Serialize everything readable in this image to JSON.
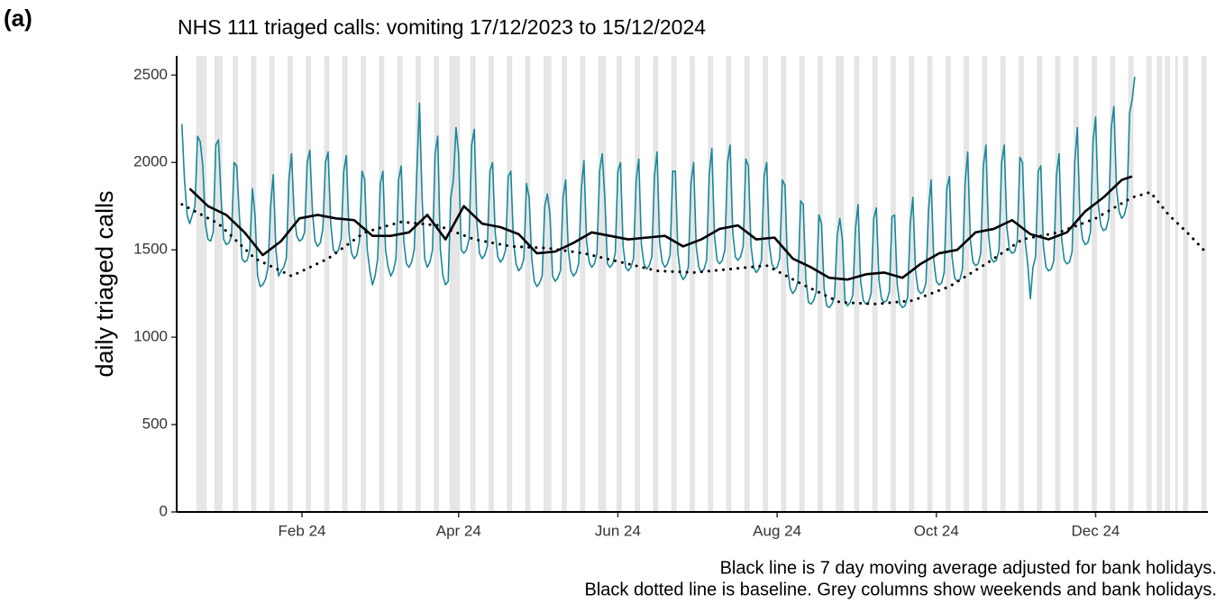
{
  "chart_data": {
    "type": "line",
    "panel": "(a)",
    "title": "NHS 111 triaged calls: vomiting 17/12/2023 to 15/12/2024",
    "y_label": "daily triaged calls",
    "notes": [
      "Black line is 7 day moving average adjusted for bank holidays.",
      "Black dotted line is baseline. Grey columns show weekends and bank holidays."
    ],
    "xlim": [
      -2,
      393
    ],
    "xticks": [
      {
        "value": 46,
        "label": "Feb 24"
      },
      {
        "value": 106,
        "label": "Apr 24"
      },
      {
        "value": 167,
        "label": "Jun 24"
      },
      {
        "value": 228,
        "label": "Aug 24"
      },
      {
        "value": 289,
        "label": "Oct 24"
      },
      {
        "value": 350,
        "label": "Dec 24"
      }
    ],
    "ylim": [
      0,
      2610
    ],
    "yticks": [
      0,
      500,
      1000,
      1500,
      2000,
      2500
    ],
    "grid": false,
    "shade_color": "#e5e5e5",
    "shaded_days": [
      6,
      7,
      8,
      9,
      13,
      14,
      15,
      20,
      21,
      27,
      28,
      34,
      35,
      41,
      42,
      48,
      49,
      55,
      56,
      62,
      63,
      69,
      70,
      76,
      77,
      83,
      84,
      90,
      91,
      97,
      98,
      103,
      104,
      105,
      106,
      111,
      112,
      118,
      119,
      125,
      126,
      132,
      133,
      139,
      140,
      141,
      146,
      147,
      153,
      154,
      160,
      161,
      162,
      167,
      168,
      174,
      175,
      181,
      182,
      188,
      189,
      195,
      196,
      202,
      203,
      209,
      210,
      216,
      217,
      223,
      224,
      230,
      231,
      237,
      238,
      244,
      245,
      251,
      252,
      253,
      258,
      259,
      265,
      266,
      272,
      273,
      279,
      280,
      286,
      287,
      293,
      294,
      300,
      301,
      307,
      308,
      314,
      315,
      321,
      322,
      328,
      329,
      335,
      336,
      342,
      343,
      349,
      350,
      356,
      357,
      363,
      364,
      370,
      371,
      374,
      375,
      377,
      378,
      381,
      384,
      385,
      391,
      392
    ],
    "series": [
      {
        "name": "daily calls",
        "color": "#19879b",
        "style": "solid",
        "width": 1.6,
        "x": [
          0,
          1,
          2,
          3,
          4,
          5,
          6,
          7,
          8,
          9,
          10,
          11,
          12,
          13,
          14,
          15,
          16,
          17,
          18,
          19,
          20,
          21,
          22,
          23,
          24,
          25,
          26,
          27,
          28,
          29,
          30,
          31,
          32,
          33,
          34,
          35,
          36,
          37,
          38,
          39,
          40,
          41,
          42,
          43,
          44,
          45,
          46,
          47,
          48,
          49,
          50,
          51,
          52,
          53,
          54,
          55,
          56,
          57,
          58,
          59,
          60,
          61,
          62,
          63,
          64,
          65,
          66,
          67,
          68,
          69,
          70,
          71,
          72,
          73,
          74,
          75,
          76,
          77,
          78,
          79,
          80,
          81,
          82,
          83,
          84,
          85,
          86,
          87,
          88,
          89,
          90,
          91,
          92,
          93,
          94,
          95,
          96,
          97,
          98,
          99,
          100,
          101,
          102,
          103,
          104,
          105,
          106,
          107,
          108,
          109,
          110,
          111,
          112,
          113,
          114,
          115,
          116,
          117,
          118,
          119,
          120,
          121,
          122,
          123,
          124,
          125,
          126,
          127,
          128,
          129,
          130,
          131,
          132,
          133,
          134,
          135,
          136,
          137,
          138,
          139,
          140,
          141,
          142,
          143,
          144,
          145,
          146,
          147,
          148,
          149,
          150,
          151,
          152,
          153,
          154,
          155,
          156,
          157,
          158,
          159,
          160,
          161,
          162,
          163,
          164,
          165,
          166,
          167,
          168,
          169,
          170,
          171,
          172,
          173,
          174,
          175,
          176,
          177,
          178,
          179,
          180,
          181,
          182,
          183,
          184,
          185,
          186,
          187,
          188,
          189,
          190,
          191,
          192,
          193,
          194,
          195,
          196,
          197,
          198,
          199,
          200,
          201,
          202,
          203,
          204,
          205,
          206,
          207,
          208,
          209,
          210,
          211,
          212,
          213,
          214,
          215,
          216,
          217,
          218,
          219,
          220,
          221,
          222,
          223,
          224,
          225,
          226,
          227,
          228,
          229,
          230,
          231,
          232,
          233,
          234,
          235,
          236,
          237,
          238,
          239,
          240,
          241,
          242,
          243,
          244,
          245,
          246,
          247,
          248,
          249,
          250,
          251,
          252,
          253,
          254,
          255,
          256,
          257,
          258,
          259,
          260,
          261,
          262,
          263,
          264,
          265,
          266,
          267,
          268,
          269,
          270,
          271,
          272,
          273,
          274,
          275,
          276,
          277,
          278,
          279,
          280,
          281,
          282,
          283,
          284,
          285,
          286,
          287,
          288,
          289,
          290,
          291,
          292,
          293,
          294,
          295,
          296,
          297,
          298,
          299,
          300,
          301,
          302,
          303,
          304,
          305,
          306,
          307,
          308,
          309,
          310,
          311,
          312,
          313,
          314,
          315,
          316,
          317,
          318,
          319,
          320,
          321,
          322,
          323,
          324,
          325,
          326,
          327,
          328,
          329,
          330,
          331,
          332,
          333,
          334,
          335,
          336,
          337,
          338,
          339,
          340,
          341,
          342,
          343,
          344,
          345,
          346,
          347,
          348,
          349,
          350,
          351,
          352,
          353,
          354,
          355,
          356,
          357,
          358,
          359,
          360,
          361,
          362,
          363,
          364,
          365
        ],
        "values": [
          2220,
          1900,
          1700,
          1650,
          1700,
          1750,
          2150,
          2120,
          1980,
          1650,
          1560,
          1550,
          1600,
          2100,
          2130,
          1800,
          1560,
          1530,
          1540,
          1580,
          2000,
          1980,
          1700,
          1450,
          1430,
          1440,
          1500,
          1850,
          1700,
          1350,
          1290,
          1300,
          1330,
          1400,
          1750,
          1930,
          1500,
          1350,
          1380,
          1400,
          1450,
          1900,
          2050,
          1700,
          1580,
          1550,
          1560,
          1600,
          2000,
          2070,
          1720,
          1550,
          1520,
          1540,
          1620,
          2000,
          2060,
          1650,
          1500,
          1480,
          1500,
          1560,
          1950,
          2040,
          1600,
          1480,
          1450,
          1470,
          1550,
          1950,
          1900,
          1500,
          1380,
          1300,
          1350,
          1450,
          1880,
          1950,
          1500,
          1400,
          1350,
          1380,
          1450,
          1900,
          1980,
          1550,
          1420,
          1400,
          1430,
          1500,
          1950,
          2340,
          1800,
          1450,
          1400,
          1430,
          1500,
          2050,
          2150,
          1500,
          1350,
          1300,
          1320,
          1800,
          1900,
          2200,
          2050,
          1500,
          1480,
          1500,
          1560,
          2100,
          2190,
          1650,
          1480,
          1450,
          1470,
          1520,
          1950,
          2000,
          1600,
          1460,
          1430,
          1450,
          1500,
          1920,
          1950,
          1550,
          1420,
          1380,
          1400,
          1450,
          1880,
          1800,
          1450,
          1320,
          1290,
          1310,
          1350,
          1750,
          1820,
          1700,
          1350,
          1320,
          1340,
          1380,
          1800,
          1900,
          1500,
          1380,
          1350,
          1370,
          1420,
          1850,
          2010,
          1550,
          1430,
          1400,
          1420,
          1480,
          1950,
          2050,
          1800,
          1420,
          1400,
          1420,
          1480,
          1950,
          2000,
          1520,
          1400,
          1380,
          1400,
          1450,
          1900,
          2020,
          1530,
          1420,
          1390,
          1410,
          1460,
          1920,
          2060,
          1540,
          1430,
          1400,
          1420,
          1470,
          1950,
          1950,
          1480,
          1360,
          1330,
          1350,
          1400,
          1880,
          2000,
          1520,
          1400,
          1370,
          1390,
          1440,
          1930,
          2080,
          1580,
          1440,
          1420,
          1440,
          1500,
          2000,
          2100,
          1600,
          1460,
          1440,
          1460,
          1520,
          2020,
          1980,
          1520,
          1400,
          1370,
          1390,
          1440,
          1920,
          2000,
          1530,
          1420,
          1390,
          1400,
          1450,
          1900,
          1870,
          1400,
          1280,
          1250,
          1270,
          1320,
          1780,
          1760,
          1330,
          1200,
          1190,
          1210,
          1260,
          1700,
          1650,
          1280,
          1180,
          1170,
          1190,
          1230,
          1580,
          1680,
          1560,
          1200,
          1180,
          1200,
          1240,
          1620,
          1760,
          1320,
          1210,
          1190,
          1200,
          1250,
          1680,
          1740,
          1330,
          1220,
          1200,
          1210,
          1260,
          1690,
          1700,
          1300,
          1190,
          1170,
          1180,
          1230,
          1650,
          1800,
          1380,
          1270,
          1250,
          1260,
          1310,
          1730,
          1900,
          1440,
          1320,
          1300,
          1310,
          1370,
          1850,
          1920,
          1460,
          1340,
          1320,
          1330,
          1390,
          1880,
          2060,
          1560,
          1430,
          1410,
          1420,
          1480,
          1980,
          2100,
          1580,
          1450,
          1430,
          1440,
          1500,
          2000,
          2100,
          1630,
          1500,
          1480,
          1490,
          1550,
          2030,
          2000,
          1550,
          1420,
          1220,
          1400,
          1460,
          1950,
          1980,
          1520,
          1400,
          1380,
          1390,
          1440,
          1930,
          2050,
          1560,
          1440,
          1420,
          1430,
          1490,
          2000,
          2200,
          1680,
          1560,
          1530,
          1540,
          1600,
          2120,
          2260,
          1760,
          1640,
          1610,
          1620,
          1680,
          2200,
          2320,
          1850,
          1720,
          1680,
          1700,
          1760,
          2280,
          2360,
          2490
        ]
      },
      {
        "name": "7 day moving average",
        "color": "#000000",
        "style": "solid",
        "width": 2.6,
        "x": [
          3,
          10,
          17,
          24,
          31,
          38,
          45,
          52,
          59,
          66,
          73,
          80,
          87,
          94,
          101,
          108,
          115,
          122,
          129,
          136,
          143,
          150,
          157,
          164,
          171,
          178,
          185,
          192,
          199,
          206,
          213,
          220,
          227,
          234,
          241,
          248,
          255,
          262,
          269,
          276,
          283,
          290,
          297,
          304,
          311,
          318,
          325,
          332,
          339,
          346,
          353,
          360,
          364
        ],
        "values": [
          1850,
          1750,
          1700,
          1600,
          1470,
          1550,
          1680,
          1700,
          1680,
          1670,
          1580,
          1580,
          1600,
          1700,
          1560,
          1750,
          1650,
          1630,
          1590,
          1480,
          1490,
          1540,
          1600,
          1580,
          1560,
          1570,
          1580,
          1520,
          1560,
          1620,
          1640,
          1560,
          1570,
          1450,
          1400,
          1340,
          1330,
          1360,
          1370,
          1340,
          1420,
          1480,
          1500,
          1600,
          1620,
          1670,
          1590,
          1560,
          1600,
          1720,
          1800,
          1900,
          1920
        ]
      },
      {
        "name": "baseline",
        "color": "#000000",
        "style": "dotted",
        "width": 3,
        "x": [
          0,
          14,
          28,
          42,
          56,
          70,
          84,
          98,
          112,
          126,
          140,
          154,
          168,
          182,
          196,
          210,
          224,
          238,
          252,
          266,
          280,
          294,
          308,
          322,
          336,
          350,
          364,
          371,
          378,
          385,
          392
        ],
        "values": [
          1760,
          1650,
          1450,
          1350,
          1450,
          1600,
          1660,
          1640,
          1560,
          1520,
          1510,
          1480,
          1430,
          1380,
          1370,
          1390,
          1410,
          1300,
          1200,
          1190,
          1210,
          1290,
          1420,
          1560,
          1600,
          1680,
          1800,
          1830,
          1700,
          1600,
          1490
        ]
      }
    ]
  }
}
